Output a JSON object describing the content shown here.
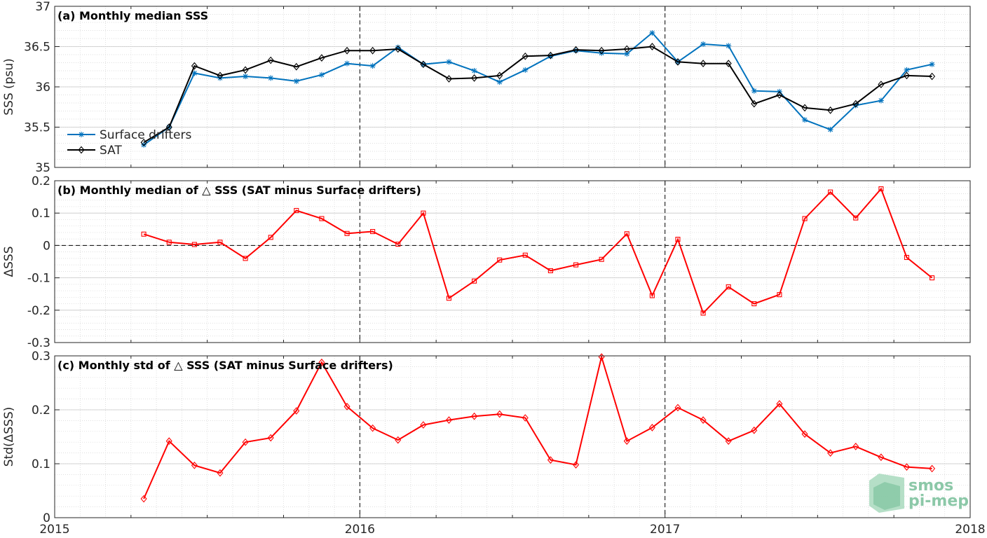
{
  "chart_data": [
    {
      "type": "line",
      "title": "(a) Monthly median SSS",
      "xlabel": "",
      "ylabel": "SSS (psu)",
      "xlim": [
        2015,
        2018
      ],
      "ylim": [
        35,
        37
      ],
      "x_ticks": [
        2015,
        2016,
        2017,
        2018
      ],
      "x_tick_labels": [
        "2015",
        "2016",
        "2017",
        "2018"
      ],
      "y_ticks": [
        35,
        35.5,
        36,
        36.5,
        37
      ],
      "y_tick_labels": [
        "35",
        "35.5",
        "36",
        "36.5",
        "37"
      ],
      "grid": true,
      "legend_position": "bottom-left",
      "x": [
        2015.292,
        2015.375,
        2015.458,
        2015.542,
        2015.625,
        2015.708,
        2015.792,
        2015.875,
        2015.958,
        2016.042,
        2016.125,
        2016.208,
        2016.292,
        2016.375,
        2016.458,
        2016.542,
        2016.625,
        2016.708,
        2016.792,
        2016.875,
        2016.958,
        2017.042,
        2017.125,
        2017.208,
        2017.292,
        2017.375,
        2017.458,
        2017.542,
        2017.625,
        2017.708,
        2017.792,
        2017.875
      ],
      "series": [
        {
          "name": "Surface drifters",
          "color": "#0072BD",
          "marker": "star",
          "values": [
            35.28,
            35.5,
            36.17,
            36.11,
            36.13,
            36.11,
            36.07,
            36.15,
            36.29,
            36.26,
            36.49,
            36.28,
            36.31,
            36.2,
            36.06,
            36.21,
            36.38,
            36.45,
            36.42,
            36.41,
            36.67,
            36.31,
            36.53,
            36.51,
            35.95,
            35.94,
            35.59,
            35.47,
            35.77,
            35.83,
            36.21,
            36.28
          ]
        },
        {
          "name": "SAT",
          "color": "#000000",
          "marker": "diamond",
          "values": [
            35.31,
            35.5,
            36.26,
            36.14,
            36.21,
            36.33,
            36.25,
            36.36,
            36.45,
            36.45,
            36.47,
            36.28,
            36.1,
            36.11,
            36.14,
            36.38,
            36.39,
            36.46,
            36.45,
            36.47,
            36.5,
            36.31,
            36.29,
            36.29,
            35.79,
            35.9,
            35.74,
            35.71,
            35.79,
            36.03,
            36.14,
            36.13
          ]
        }
      ],
      "vlines": [
        2016,
        2017
      ]
    },
    {
      "type": "line",
      "title": "(b) Monthly median of △ SSS (SAT minus Surface drifters)",
      "xlabel": "",
      "ylabel": "ΔSSS",
      "xlim": [
        2015,
        2018
      ],
      "ylim": [
        -0.3,
        0.2
      ],
      "y_ticks": [
        -0.3,
        -0.2,
        -0.1,
        0,
        0.1,
        0.2
      ],
      "y_tick_labels": [
        "-0.3",
        "-0.2",
        "-0.1",
        "0",
        "0.1",
        "0.2"
      ],
      "grid": true,
      "x": [
        2015.292,
        2015.375,
        2015.458,
        2015.542,
        2015.625,
        2015.708,
        2015.792,
        2015.875,
        2015.958,
        2016.042,
        2016.125,
        2016.208,
        2016.292,
        2016.375,
        2016.458,
        2016.542,
        2016.625,
        2016.708,
        2016.792,
        2016.875,
        2016.958,
        2017.042,
        2017.125,
        2017.208,
        2017.292,
        2017.375,
        2017.458,
        2017.542,
        2017.625,
        2017.708,
        2017.792,
        2017.875
      ],
      "series": [
        {
          "color": "#FF0000",
          "marker": "square",
          "values": [
            0.035,
            0.01,
            0.003,
            0.01,
            -0.04,
            0.025,
            0.108,
            0.083,
            0.037,
            0.043,
            0.004,
            0.1,
            -0.163,
            -0.11,
            -0.045,
            -0.03,
            -0.078,
            -0.06,
            -0.043,
            0.036,
            -0.155,
            0.019,
            -0.209,
            -0.128,
            -0.18,
            -0.152,
            0.083,
            0.165,
            0.085,
            0.175,
            -0.037,
            -0.1
          ]
        }
      ],
      "vlines": [
        2016,
        2017
      ],
      "hline": 0
    },
    {
      "type": "line",
      "title": "(c) Monthly std of △ SSS (SAT minus Surface drifters)",
      "xlabel": "",
      "ylabel": "Std(ΔSSS)",
      "xlim": [
        2015,
        2018
      ],
      "ylim": [
        0,
        0.3
      ],
      "y_ticks": [
        0,
        0.1,
        0.2,
        0.3
      ],
      "y_tick_labels": [
        "0",
        "0.1",
        "0.2",
        "0.3"
      ],
      "grid": true,
      "x": [
        2015.292,
        2015.375,
        2015.458,
        2015.542,
        2015.625,
        2015.708,
        2015.792,
        2015.875,
        2015.958,
        2016.042,
        2016.125,
        2016.208,
        2016.292,
        2016.375,
        2016.458,
        2016.542,
        2016.625,
        2016.708,
        2016.792,
        2016.875,
        2016.958,
        2017.042,
        2017.125,
        2017.208,
        2017.292,
        2017.375,
        2017.458,
        2017.542,
        2017.625,
        2017.708,
        2017.792,
        2017.875
      ],
      "series": [
        {
          "color": "#FF0000",
          "marker": "diamond",
          "values": [
            0.035,
            0.142,
            0.097,
            0.083,
            0.14,
            0.148,
            0.198,
            0.288,
            0.206,
            0.166,
            0.144,
            0.172,
            0.181,
            0.188,
            0.192,
            0.185,
            0.107,
            0.098,
            0.298,
            0.142,
            0.167,
            0.204,
            0.181,
            0.142,
            0.162,
            0.211,
            0.155,
            0.12,
            0.132,
            0.112,
            0.094,
            0.091
          ]
        }
      ],
      "vlines": [
        2016,
        2017
      ]
    }
  ],
  "logo": {
    "line1": "smos",
    "line2": "pi-mep"
  }
}
